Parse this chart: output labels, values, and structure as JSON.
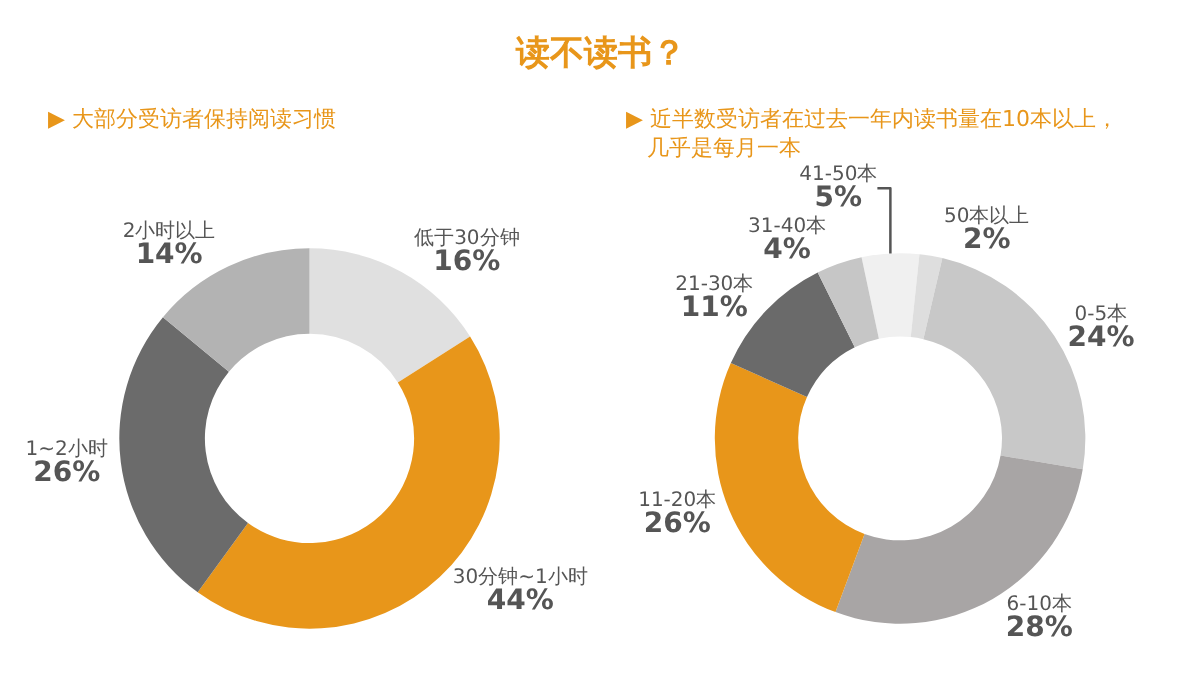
{
  "chart_data": [
    {
      "type": "donut",
      "title": "读不读书？",
      "subtitle": "▶ 大部分受访者保持阅读习惯",
      "categories": [
        "低于30分钟",
        "30分钟~1小时",
        "1~2小时",
        "2小时以上"
      ],
      "values": [
        16,
        44,
        26,
        14
      ],
      "colors": [
        "#e0e0e0",
        "#e8961a",
        "#6b6b6b",
        "#b3b3b3"
      ],
      "value_labels": [
        "16%",
        "44%",
        "26%",
        "14%"
      ]
    },
    {
      "type": "donut",
      "subtitle": "▶ 近半数受访者在过去一年内读书量在10本以上，几乎是每月一本",
      "categories": [
        "41-50本",
        "50本以上",
        "0-5本",
        "6-10本",
        "11-20本",
        "21-30本",
        "31-40本"
      ],
      "values": [
        5,
        2,
        24,
        28,
        26,
        11,
        4
      ],
      "colors": [
        "#f0f0f0",
        "#dedede",
        "#c8c8c8",
        "#a8a5a5",
        "#e8961a",
        "#6a6a6a",
        "#c6c6c6"
      ],
      "value_labels": [
        "5%",
        "2%",
        "24%",
        "28%",
        "26%",
        "11%",
        "4%"
      ]
    }
  ]
}
